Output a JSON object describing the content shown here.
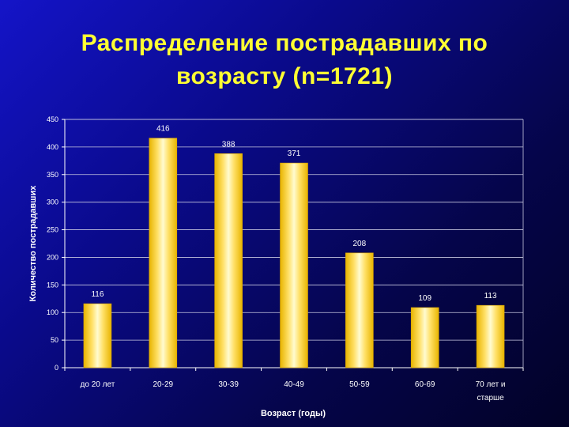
{
  "slide": {
    "title_line1": "Распределение пострадавших по",
    "title_line2": "возрасту   (n=1721)"
  },
  "chart_data": {
    "type": "bar",
    "title": "Распределение пострадавших по возрасту   (n=1721)",
    "xlabel": "Возраст (годы)",
    "ylabel": "Количество пострадавших",
    "categories": [
      [
        "до 20 лет"
      ],
      [
        "20-29"
      ],
      [
        "30-39"
      ],
      [
        "40-49"
      ],
      [
        "50-59"
      ],
      [
        "60-69"
      ],
      [
        "70 лет и",
        "старше"
      ]
    ],
    "values": [
      116,
      416,
      388,
      371,
      208,
      109,
      113
    ],
    "ylim": [
      0,
      450
    ],
    "yticks": [
      0,
      50,
      100,
      150,
      200,
      250,
      300,
      350,
      400,
      450
    ],
    "grid": true,
    "legend": "none",
    "colors": {
      "bar_edge": "#e8b400",
      "bar_center": "#fffbd0",
      "bar_mid": "#ffe066",
      "grid": "#c8c8e0",
      "text": "#ffffff",
      "title": "#ffff33"
    }
  }
}
